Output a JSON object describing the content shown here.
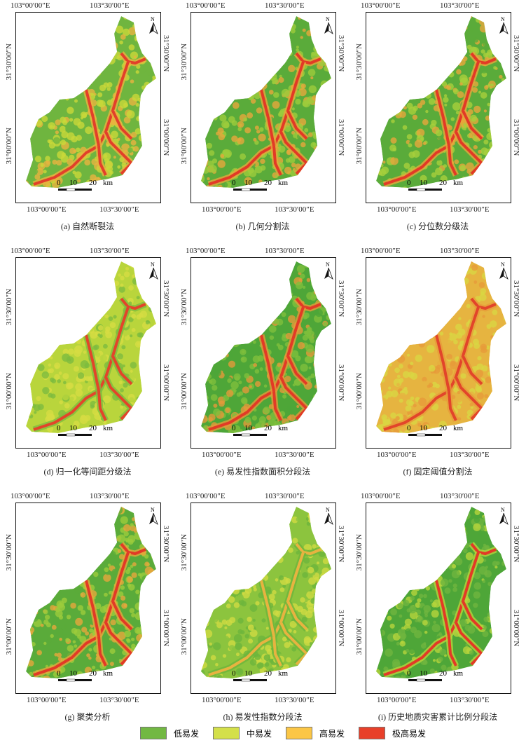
{
  "axis_labels": {
    "lon_west": "103°00′00″E",
    "lon_east": "103°30′00″E",
    "lat_north": "31°30′00″N",
    "lat_south": "31°00′00″N"
  },
  "north_arrow": "N",
  "scale_bar": {
    "t0": "0",
    "t1": "10",
    "t2": "20",
    "unit": "km"
  },
  "panels": [
    {
      "caption": "(a) 自然断裂法",
      "colors": [
        "#6fb53f",
        "#c9d83a",
        "#e8b440",
        "#e2402a"
      ]
    },
    {
      "caption": "(b) 几何分割法",
      "colors": [
        "#5aab3a",
        "#9ccc3c",
        "#e6a83c",
        "#e23a26"
      ]
    },
    {
      "caption": "(c) 分位数分级法",
      "colors": [
        "#5aab3a",
        "#a8cf3c",
        "#e6a83c",
        "#e23a26"
      ]
    },
    {
      "caption": "(d) 归一化等间距分级法",
      "colors": [
        "#b9d53c",
        "#d6dc42",
        "#7dbb3e",
        "#e2452a"
      ]
    },
    {
      "caption": "(e) 易发性指数面积分段法",
      "colors": [
        "#4ea638",
        "#7fbf3c",
        "#e39a3a",
        "#e23a26"
      ]
    },
    {
      "caption": "(f) 固定阈值分割法",
      "colors": [
        "#e6b440",
        "#d9d642",
        "#e79b3a",
        "#e2452a"
      ]
    },
    {
      "caption": "(g) 聚类分析",
      "colors": [
        "#5aab3a",
        "#9ccc3c",
        "#e6a83c",
        "#e23a26"
      ]
    },
    {
      "caption": "(h) 易发性指数分段法",
      "colors": [
        "#8cc43e",
        "#cfdb42",
        "#6db53c",
        "#e7b340"
      ]
    },
    {
      "caption": "(i) 历史地质灾害累计比例分段法",
      "colors": [
        "#4ea638",
        "#6fb53f",
        "#b6d43c",
        "#e23a26"
      ]
    }
  ],
  "legend": [
    {
      "label": "低易发",
      "color": "#72b843"
    },
    {
      "label": "中易发",
      "color": "#d4e04a"
    },
    {
      "label": "高易发",
      "color": "#fbc646"
    },
    {
      "label": "极高易发",
      "color": "#e8402a"
    }
  ]
}
